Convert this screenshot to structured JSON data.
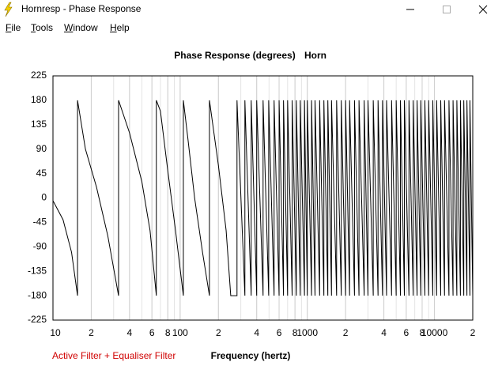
{
  "window": {
    "title": "Hornresp - Phase Response"
  },
  "menu": [
    "File",
    "Tools",
    "Window",
    "Help"
  ],
  "footer": "Active Filter + Equaliser Filter",
  "chart_data": {
    "type": "line",
    "title": "Phase Response (degrees)",
    "subtitle": "Horn",
    "x_label": "Frequency (hertz)",
    "xlog": true,
    "minor_grid": true,
    "xlim": [
      10,
      20000
    ],
    "ylim": [
      -225,
      225
    ],
    "xticks": [
      10,
      {
        "value": 20,
        "label": "2"
      },
      {
        "value": 40,
        "label": "4"
      },
      {
        "value": 60,
        "label": "6"
      },
      {
        "value": 80,
        "label": "8"
      },
      100,
      {
        "value": 200,
        "label": "2"
      },
      {
        "value": 400,
        "label": "4"
      },
      {
        "value": 600,
        "label": "6"
      },
      {
        "value": 800,
        "label": "8"
      },
      1000,
      {
        "value": 2000,
        "label": "2"
      },
      {
        "value": 4000,
        "label": "4"
      },
      {
        "value": 6000,
        "label": "6"
      },
      {
        "value": 8000,
        "label": "8"
      },
      10000,
      {
        "value": 20000,
        "label": "2"
      }
    ],
    "yticks": [
      225,
      180,
      135,
      90,
      45,
      0,
      -45,
      -90,
      -135,
      -180,
      -225
    ],
    "series": [
      {
        "color": "#000000",
        "x": [
          10,
          12,
          14,
          15.6,
          15.6,
          18,
          22,
          27,
          32.8,
          32.8,
          40,
          50,
          58,
          65,
          65,
          70,
          80,
          92,
          106,
          106,
          115,
          130,
          150,
          170,
          170,
          200,
          230,
          250,
          280,
          280,
          323,
          323,
          362,
          362,
          400,
          400,
          449,
          449,
          497,
          497,
          548,
          548,
          600,
          600,
          650,
          650,
          700,
          700,
          760,
          760,
          820,
          820,
          880,
          880,
          950,
          950,
          1000,
          1000,
          1080,
          1080,
          1150,
          1150,
          1250,
          1250,
          1350,
          1350,
          1450,
          1450,
          1550,
          1550,
          1700,
          1700,
          1850,
          1850,
          2000,
          2000,
          2150,
          2150,
          2350,
          2350,
          2550,
          2550,
          2800,
          2800,
          3000,
          3000,
          3300,
          3300,
          3600,
          3600,
          3900,
          3900,
          4200,
          4200,
          4600,
          4600,
          5000,
          5000,
          5400,
          5400,
          5800,
          5800,
          6300,
          6300,
          6800,
          6800,
          7300,
          7300,
          7800,
          7800,
          8400,
          8400,
          9000,
          9000,
          9700,
          9700,
          10400,
          10400,
          11200,
          11200,
          12000,
          12000,
          13000,
          13000,
          14000,
          14000,
          15000,
          15000,
          16000,
          16000,
          17000,
          17000,
          18000,
          18000,
          19000,
          19000,
          20000,
          20000
        ],
        "values": [
          -5,
          -40,
          -100,
          -180,
          180,
          90,
          20,
          -70,
          -180,
          180,
          120,
          30,
          -60,
          -180,
          180,
          160,
          50,
          -60,
          -180,
          180,
          110,
          0,
          -100,
          -180,
          180,
          60,
          -60,
          -180,
          -180,
          180,
          -180,
          180,
          -180,
          180,
          -180,
          180,
          -180,
          180,
          -180,
          180,
          -180,
          180,
          -180,
          180,
          -180,
          180,
          -180,
          180,
          -180,
          180,
          -180,
          180,
          -180,
          180,
          -180,
          180,
          -180,
          180,
          -180,
          180,
          -180,
          180,
          -180,
          180,
          -180,
          180,
          -180,
          180,
          -180,
          180,
          -180,
          180,
          -180,
          180,
          -180,
          180,
          -180,
          180,
          -180,
          180,
          -180,
          180,
          -180,
          180,
          -180,
          180,
          -180,
          180,
          -180,
          180,
          -180,
          180,
          -180,
          180,
          -180,
          180,
          -180,
          180,
          -180,
          180,
          -180,
          180,
          -180,
          180,
          -180,
          180,
          -180,
          180,
          -180,
          180,
          -180,
          180,
          -180,
          180,
          -180,
          180,
          -180,
          180,
          -180,
          180,
          -180,
          180,
          -180,
          180,
          -180,
          180,
          -180,
          180,
          -180,
          180,
          -180,
          180,
          -180,
          180,
          -180,
          180,
          -180,
          180
        ]
      }
    ]
  }
}
